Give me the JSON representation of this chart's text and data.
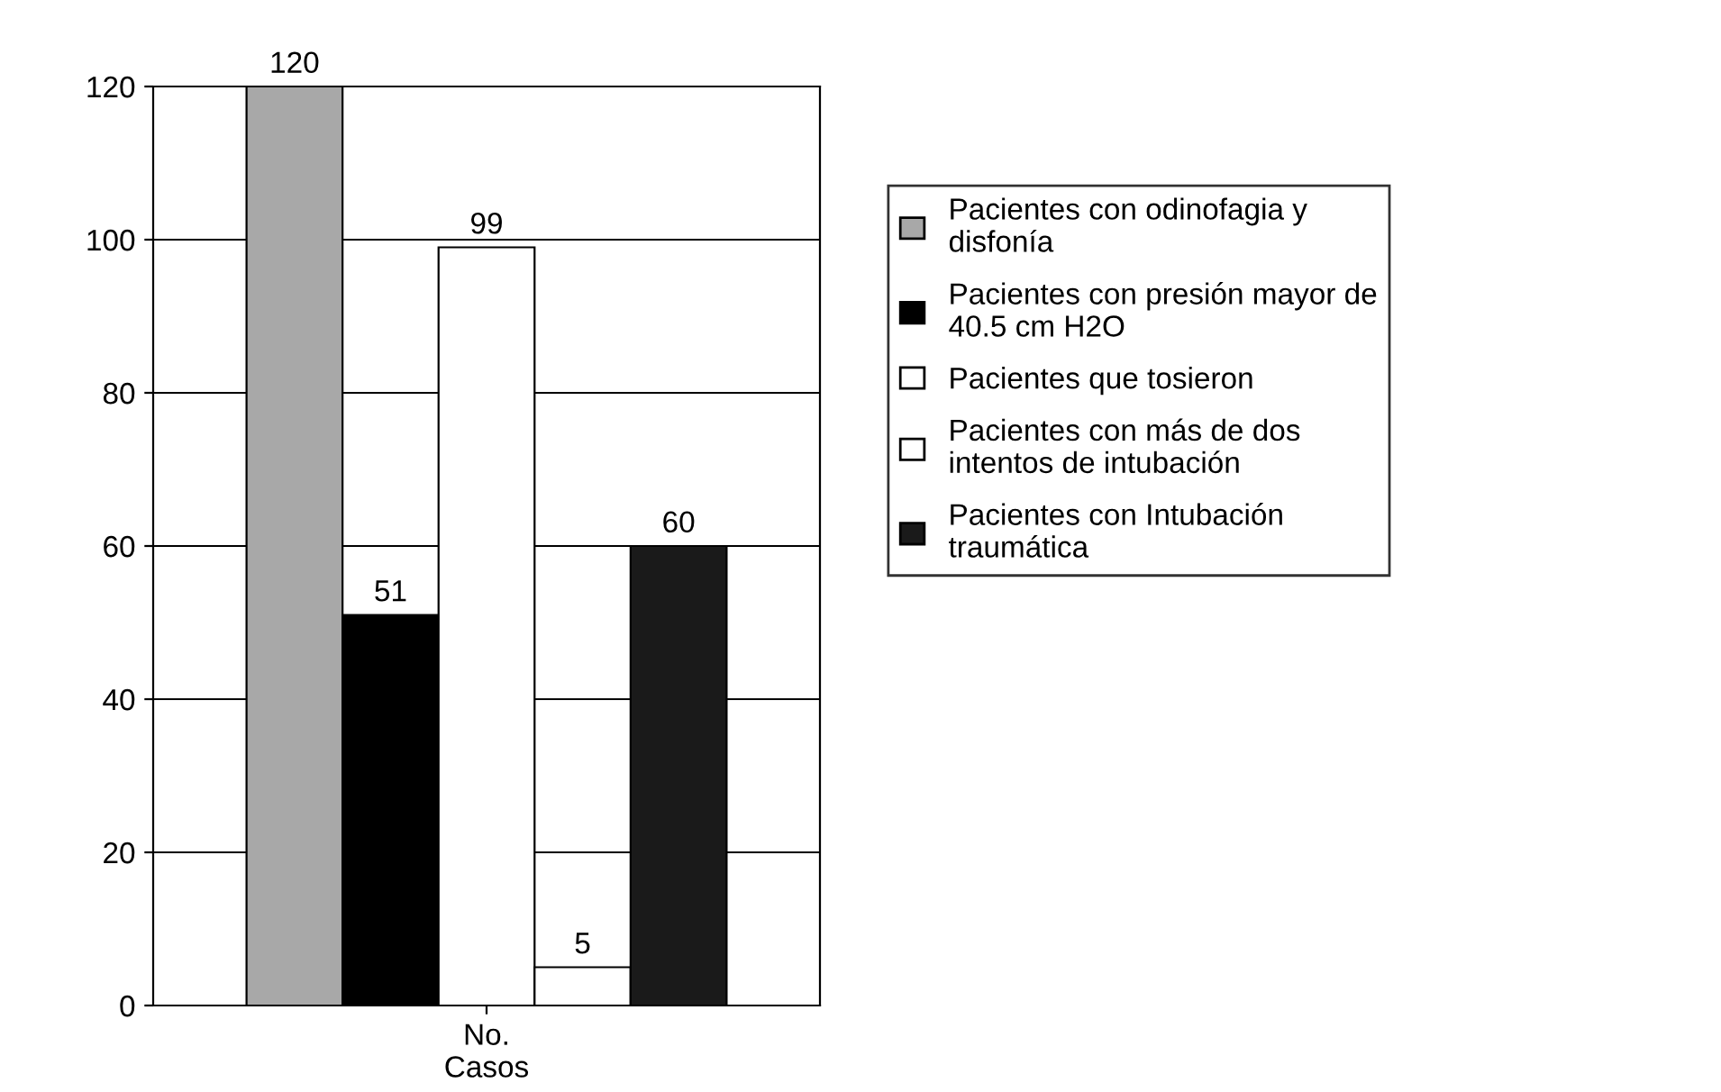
{
  "chart_data": {
    "type": "bar",
    "categories": [
      "No.\nCasos"
    ],
    "series": [
      {
        "name": "Pacientes con odinofagia y\ndisfonía",
        "color": "#a8a8a8",
        "values": [
          120
        ]
      },
      {
        "name": "Pacientes con presión mayor de\n40.5 cm H2O",
        "color": "#000000",
        "values": [
          51
        ]
      },
      {
        "name": "Pacientes que tosieron",
        "color": "#ffffff",
        "values": [
          99
        ]
      },
      {
        "name": "Pacientes con más de dos\nintentos de intubación",
        "color": "#ffffff",
        "values": [
          5
        ]
      },
      {
        "name": "Pacientes con Intubación\ntraumática",
        "color": "#1a1a1a",
        "values": [
          60
        ]
      }
    ],
    "ylim": [
      0,
      120
    ],
    "yticks": [
      0,
      20,
      40,
      60,
      80,
      100,
      120
    ],
    "grid": "y",
    "legend": "right",
    "data_labels": true
  }
}
